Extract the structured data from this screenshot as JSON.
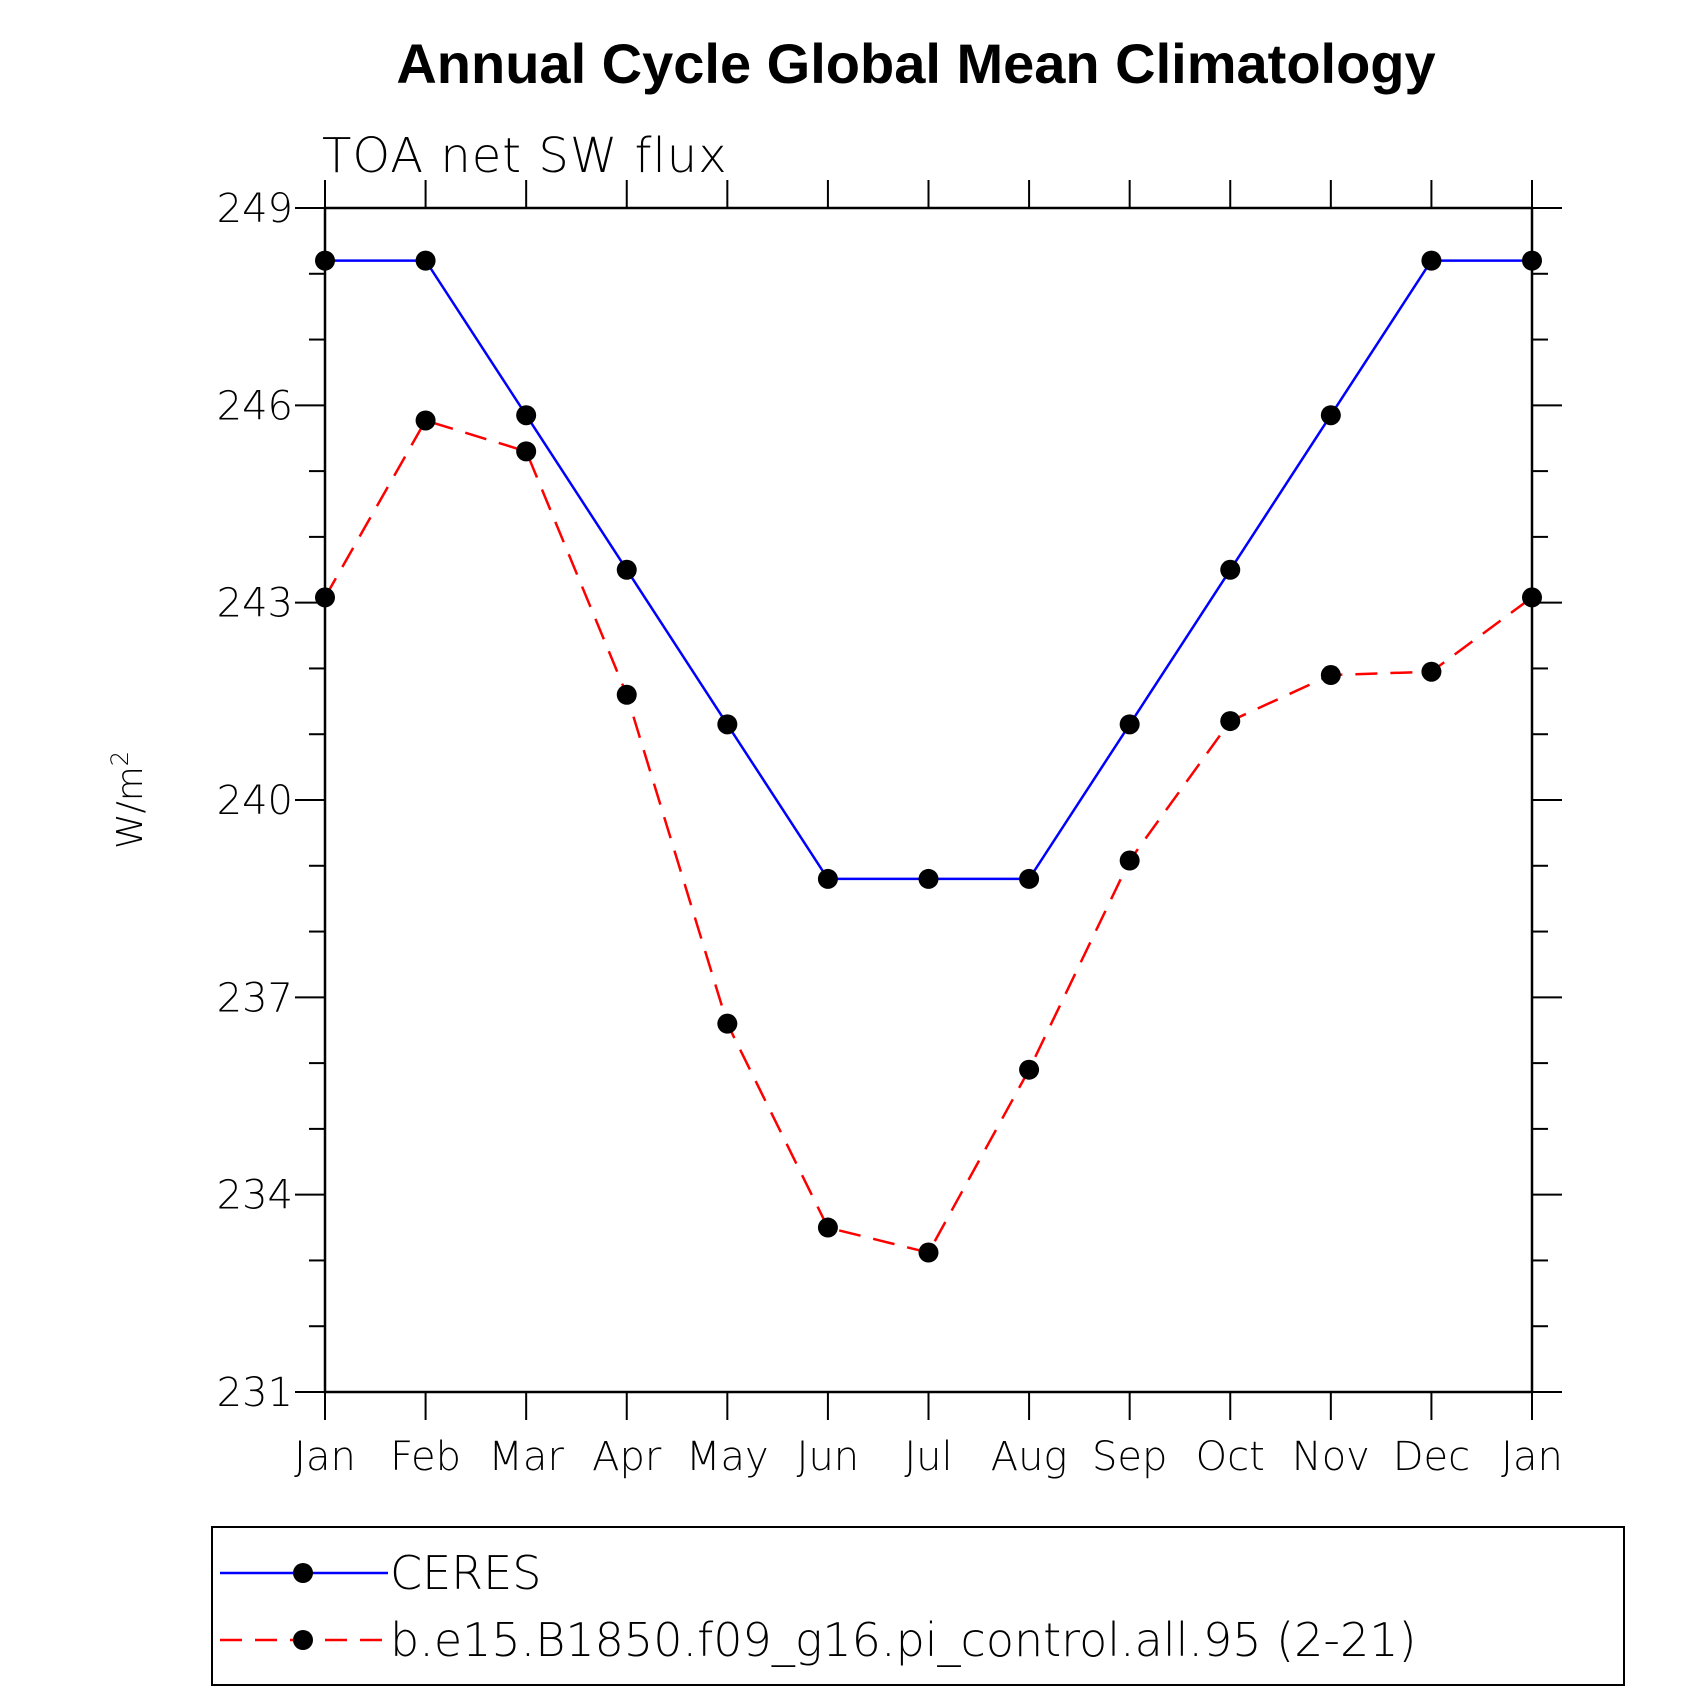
{
  "chart_data": {
    "type": "line",
    "title": "Annual Cycle Global Mean Climatology",
    "subtitle": "TOA net SW flux",
    "ylabel": "W/m",
    "ylabel_superscript": "2",
    "xlabel": "",
    "categories": [
      "Jan",
      "Feb",
      "Mar",
      "Apr",
      "May",
      "Jun",
      "Jul",
      "Aug",
      "Sep",
      "Oct",
      "Nov",
      "Dec",
      "Jan"
    ],
    "ylim": [
      231,
      249
    ],
    "yticks": [
      249,
      246,
      243,
      240,
      237,
      234,
      231
    ],
    "grid": false,
    "legend_position": "bottom",
    "series": [
      {
        "name": "CERES",
        "color": "#0000ff",
        "dash": "solid",
        "marker": "filled-circle",
        "values": [
          248.2,
          248.2,
          245.85,
          243.5,
          241.15,
          238.8,
          238.8,
          238.8,
          241.15,
          243.5,
          245.85,
          248.2,
          248.2
        ]
      },
      {
        "name": "b.e15.B1850.f09_g16.pi_control.all.95 (2-21)",
        "color": "#ff0000",
        "dash": "dashed",
        "marker": "filled-circle",
        "values": [
          243.08,
          245.77,
          245.3,
          241.6,
          236.6,
          233.5,
          233.12,
          235.9,
          239.08,
          241.2,
          241.9,
          241.95,
          243.08
        ]
      }
    ]
  }
}
